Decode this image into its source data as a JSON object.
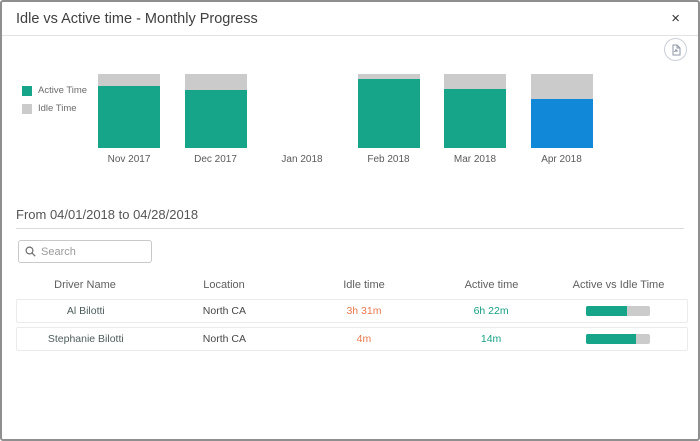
{
  "dialog": {
    "title": "Idle vs Active time - Monthly Progress",
    "close_glyph": "×"
  },
  "colors": {
    "active": "#17a58a",
    "idle": "#cbcbcb",
    "selected": "#1289d8",
    "idle_text": "#e8794d",
    "active_text": "#17a085"
  },
  "legend": [
    {
      "label": "Active Time",
      "color": "#17a58a"
    },
    {
      "label": "Idle Time",
      "color": "#cbcbcb"
    }
  ],
  "chart_data": {
    "type": "bar",
    "stacked": true,
    "categories": [
      "Nov 2017",
      "Dec 2017",
      "Jan 2018",
      "Feb 2018",
      "Mar 2018",
      "Apr 2018"
    ],
    "series": [
      {
        "name": "Active Time",
        "values": [
          84,
          79,
          0,
          93,
          80,
          66
        ]
      },
      {
        "name": "Idle Time",
        "values": [
          16,
          21,
          0,
          7,
          20,
          34
        ]
      }
    ],
    "selected_category": "Apr 2018",
    "legend_position": "left",
    "grid": false,
    "note_units": "percent of month bar height"
  },
  "period": {
    "label": "From 04/01/2018 to 04/28/2018"
  },
  "search": {
    "placeholder": "Search"
  },
  "table": {
    "columns": [
      "Driver Name",
      "Location",
      "Idle time",
      "Active time",
      "Active vs Idle Time"
    ],
    "rows": [
      {
        "driver": "Al Bilotti",
        "location": "North CA",
        "idle": "3h 31m",
        "active": "6h 22m",
        "active_pct": 64
      },
      {
        "driver": "Stephanie Bilotti",
        "location": "North CA",
        "idle": "4m",
        "active": "14m",
        "active_pct": 78
      }
    ]
  }
}
